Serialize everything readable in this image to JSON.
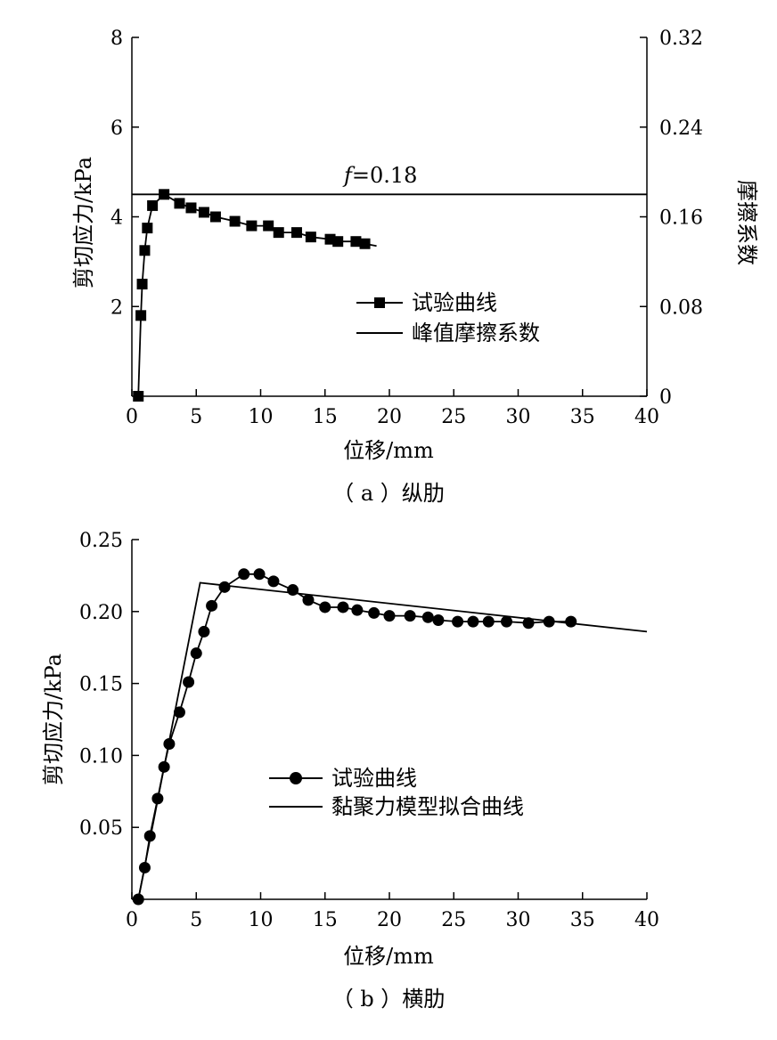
{
  "chart_data": [
    {
      "id": "a",
      "type": "line",
      "caption": "（ a ）纵肋",
      "xlabel": "位移/mm",
      "ylabel": "剪切应力/kPa",
      "y2label": "摩擦系数",
      "xlim": [
        0,
        40
      ],
      "ylim": [
        0,
        8
      ],
      "y2lim": [
        0,
        0.32
      ],
      "xticks": [
        "0",
        "5",
        "10",
        "15",
        "20",
        "25",
        "30",
        "35",
        "40"
      ],
      "yticks": [
        "2",
        "4",
        "6",
        "8"
      ],
      "y2ticks": [
        "0",
        "0.08",
        "0.16",
        "0.24",
        "0.32"
      ],
      "legend_position": "lower-right",
      "series": [
        {
          "name": "试验曲线",
          "marker": "square",
          "x": [
            0.5,
            0.7,
            0.8,
            1.0,
            1.2,
            1.6,
            2.5,
            3.7,
            4.6,
            5.6,
            6.5,
            8.0,
            9.3,
            10.6,
            11.4,
            12.8,
            13.9,
            15.4,
            16.0,
            17.4,
            18.1
          ],
          "y": [
            0.0,
            1.8,
            2.5,
            3.25,
            3.75,
            4.25,
            4.5,
            4.3,
            4.2,
            4.1,
            4.0,
            3.9,
            3.8,
            3.8,
            3.65,
            3.65,
            3.55,
            3.5,
            3.45,
            3.45,
            3.4
          ],
          "line_end_x": 19.0,
          "line_end_y": 3.35
        },
        {
          "name": "峰值摩擦系数",
          "marker": "none",
          "axis": "y2",
          "x": [
            0,
            40
          ],
          "y": [
            0.18,
            0.18
          ]
        }
      ],
      "annotations": [
        {
          "text_italic": "f",
          "text": "=0.18",
          "x": 17,
          "y": 0.19,
          "axis": "y2"
        }
      ]
    },
    {
      "id": "b",
      "type": "line",
      "caption": "（ b ）横肋",
      "xlabel": "位移/mm",
      "ylabel": "剪切应力/kPa",
      "xlim": [
        0,
        40
      ],
      "ylim": [
        0,
        0.25
      ],
      "xticks": [
        "0",
        "5",
        "10",
        "15",
        "20",
        "25",
        "30",
        "35",
        "40"
      ],
      "yticks": [
        "0.05",
        "0.10",
        "0.15",
        "0.20",
        "0.25"
      ],
      "legend_position": "lower-center",
      "series": [
        {
          "name": "试验曲线",
          "marker": "circle",
          "x": [
            0.5,
            1.0,
            1.4,
            2.0,
            2.5,
            2.9,
            3.7,
            4.4,
            5.0,
            5.6,
            6.2,
            7.2,
            8.7,
            9.9,
            11.0,
            12.5,
            13.7,
            15.0,
            16.4,
            17.5,
            18.8,
            20.0,
            21.6,
            23.0,
            23.8,
            25.3,
            26.5,
            27.7,
            29.1,
            30.8,
            32.4,
            34.1
          ],
          "y": [
            0.0,
            0.022,
            0.044,
            0.07,
            0.092,
            0.108,
            0.13,
            0.151,
            0.171,
            0.186,
            0.204,
            0.217,
            0.226,
            0.226,
            0.221,
            0.215,
            0.208,
            0.203,
            0.203,
            0.201,
            0.199,
            0.197,
            0.197,
            0.196,
            0.194,
            0.193,
            0.193,
            0.193,
            0.193,
            0.192,
            0.193,
            0.193
          ]
        },
        {
          "name": "黏聚力模型拟合曲线",
          "marker": "none",
          "x": [
            0.5,
            5.3,
            40
          ],
          "y": [
            0.0,
            0.22,
            0.186
          ]
        }
      ]
    }
  ]
}
